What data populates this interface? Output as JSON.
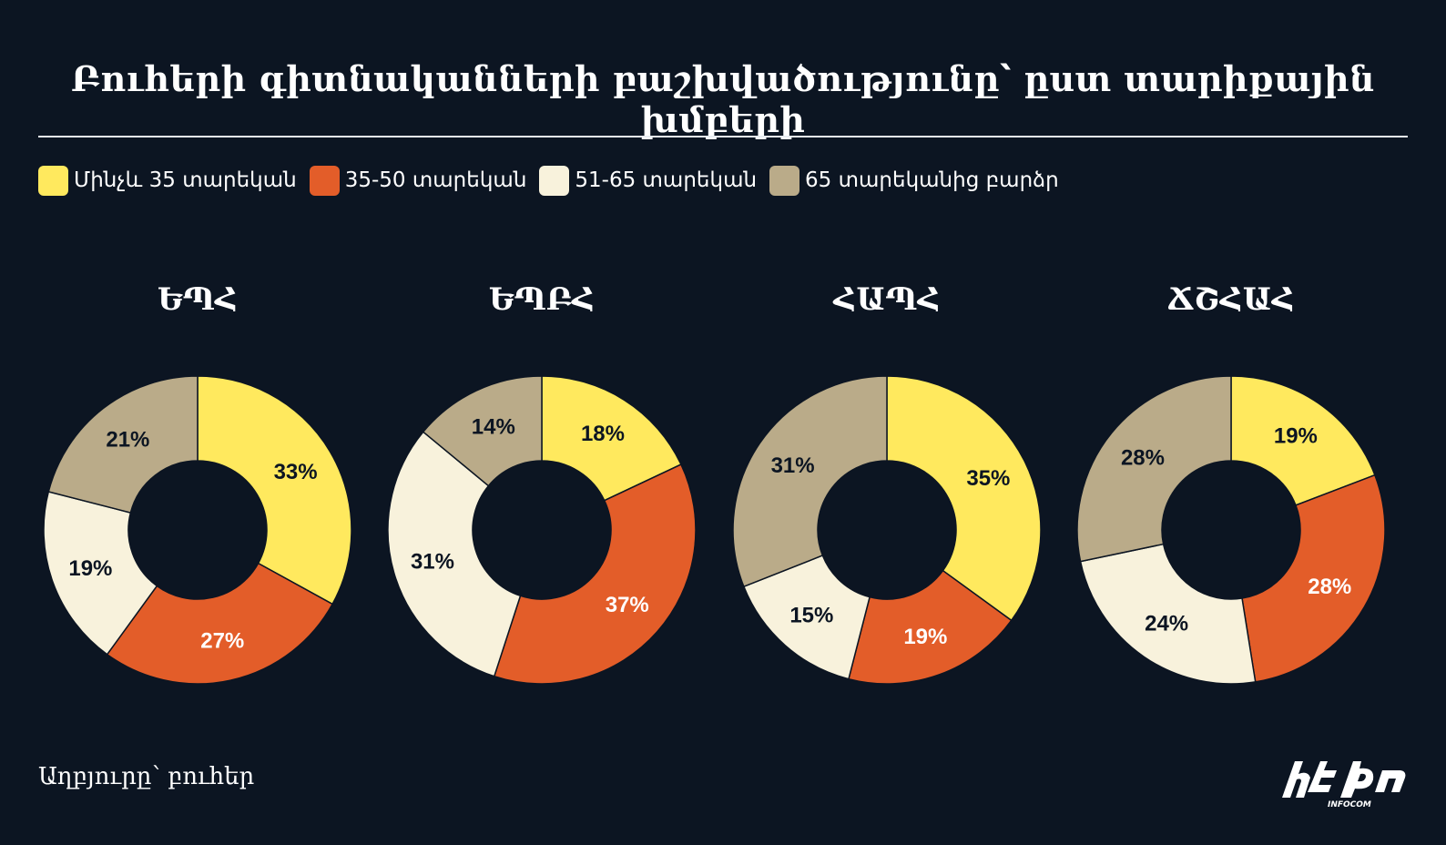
{
  "title": "Բուհերի գիտնականների բաշխվածությունը՝ ըստ տարիքային խմբերի",
  "source": "Աղբյուրը՝ բուհեր",
  "logo_text": "INFOCOM",
  "colors": {
    "background": "#0c1522",
    "under_35": "#ffe95e",
    "from_35_to_50": "#e35d29",
    "from_51_to_65": "#f8f2dc",
    "over_65": "#baab89",
    "label_dark": "#0c1522",
    "label_light": "#ffffff"
  },
  "legend": [
    {
      "label": "Մինչև 35 տարեկան",
      "color": "#ffe95e"
    },
    {
      "label": "35-50 տարեկան",
      "color": "#e35d29"
    },
    {
      "label": "51-65 տարեկան",
      "color": "#f8f2dc"
    },
    {
      "label": "65 տարեկանից բարձր",
      "color": "#baab89"
    }
  ],
  "chart_data": [
    {
      "type": "pie",
      "title": "ԵՊՀ",
      "categories": [
        "Մինչև 35 տարեկան",
        "35-50 տարեկան",
        "51-65 տարեկան",
        "65 տարեկանից բարձր"
      ],
      "values": [
        33,
        27,
        19,
        21
      ],
      "labels": [
        "33%",
        "27%",
        "19%",
        "21%"
      ]
    },
    {
      "type": "pie",
      "title": "ԵՊԲՀ",
      "categories": [
        "Մինչև 35 տարեկան",
        "35-50 տարեկան",
        "51-65 տարեկան",
        "65 տարեկանից բարձր"
      ],
      "values": [
        18,
        37,
        31,
        14
      ],
      "labels": [
        "18%",
        "37%",
        "31%",
        "14%"
      ]
    },
    {
      "type": "pie",
      "title": "ՀԱՊՀ",
      "categories": [
        "Մինչև 35 տարեկան",
        "35-50 տարեկան",
        "51-65 տարեկան",
        "65 տարեկանից բարձր"
      ],
      "values": [
        35,
        19,
        15,
        31
      ],
      "labels": [
        "35%",
        "19%",
        "15%",
        "31%"
      ]
    },
    {
      "type": "pie",
      "title": "ՃՇՀԱՀ",
      "categories": [
        "Մինչև 35 տարեկան",
        "35-50 տարեկան",
        "51-65 տարեկան",
        "65 տարեկանից բարձր"
      ],
      "values": [
        19,
        28,
        24,
        28
      ],
      "labels": [
        "19%",
        "28%",
        "24%",
        "28%"
      ]
    }
  ]
}
